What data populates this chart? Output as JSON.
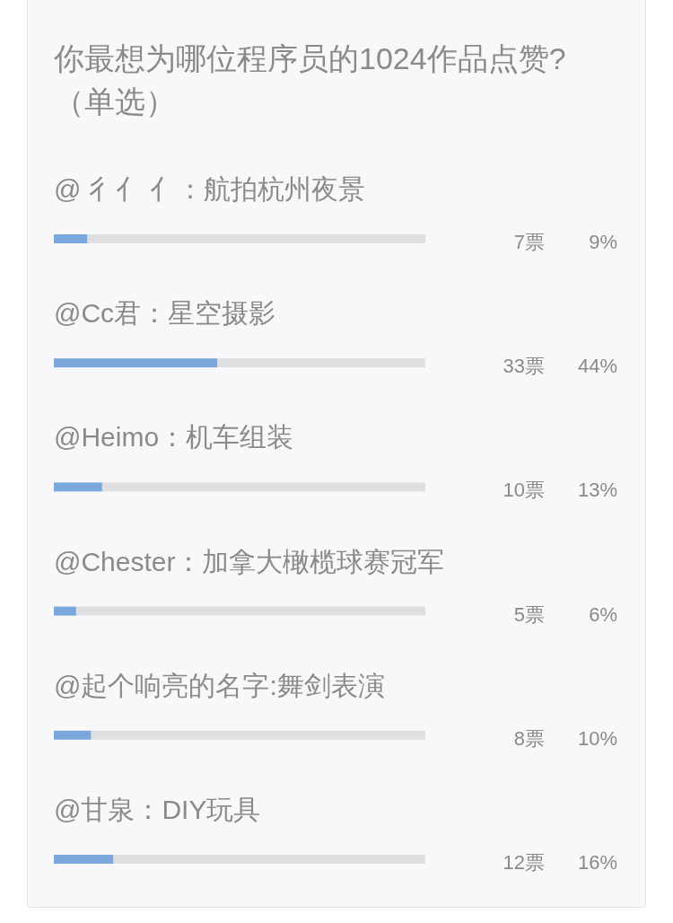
{
  "chart_data": {
    "type": "bar",
    "orientation": "horizontal",
    "title": "你最想为哪位程序员的1024作品点赞?（单选）",
    "categories": [
      "@ 彳亻 亻：航拍杭州夜景",
      "@Cc君：星空摄影",
      "@Heimo：机车组装",
      "@Chester：加拿大橄榄球赛冠军",
      "@起个响亮的名字:舞剑表演",
      "@甘泉：DIY玩具"
    ],
    "values": [
      9,
      44,
      13,
      6,
      10,
      16
    ],
    "value_labels": [
      "9%",
      "44%",
      "13%",
      "6%",
      "10%",
      "16%"
    ],
    "annotations": [
      "7票",
      "33票",
      "10票",
      "5票",
      "8票",
      "12票"
    ],
    "color": "#7aa8dc",
    "xlim": [
      0,
      100
    ],
    "tick_labels": "y"
  }
}
